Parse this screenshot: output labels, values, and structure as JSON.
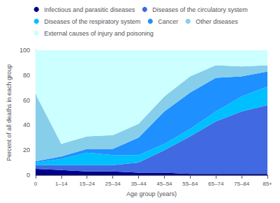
{
  "chart_data": {
    "type": "area",
    "stacked": true,
    "xlabel": "Age group (years)",
    "ylabel": "Percent of all deaths in each group",
    "categories": [
      "0",
      "1–14",
      "15–24",
      "25–34",
      "35–44",
      "45–54",
      "55–64",
      "65–74",
      "75–84",
      "85+"
    ],
    "series": [
      {
        "name": "Infectious and parasitic diseases",
        "color": "#00008B",
        "values": [
          5,
          4,
          3,
          3,
          2,
          2,
          1,
          1,
          1,
          1
        ]
      },
      {
        "name": "Diseases of the circulatory system",
        "color": "#4169E1",
        "values": [
          3,
          4,
          5,
          5,
          8,
          18,
          30,
          42,
          50,
          55
        ]
      },
      {
        "name": "Diseases of the respiratory system",
        "color": "#00BFFF",
        "values": [
          2,
          5,
          10,
          8,
          6,
          5,
          6,
          8,
          12,
          15
        ]
      },
      {
        "name": "Cancer",
        "color": "#1E90FF",
        "values": [
          1,
          2,
          3,
          5,
          14,
          26,
          29,
          27,
          16,
          12
        ]
      },
      {
        "name": "Other diseases",
        "color": "#87CEEB",
        "values": [
          54,
          10,
          10,
          11,
          11,
          12,
          13,
          10,
          8,
          5
        ]
      },
      {
        "name": "External causes of injury and poisoning",
        "color": "#CCFFFF",
        "values": [
          35,
          75,
          69,
          68,
          59,
          37,
          21,
          12,
          13,
          12
        ]
      }
    ],
    "ylim": [
      0,
      100
    ],
    "yticks": [
      0,
      20,
      40,
      60,
      80,
      100
    ],
    "grid": false,
    "legend": "top"
  }
}
